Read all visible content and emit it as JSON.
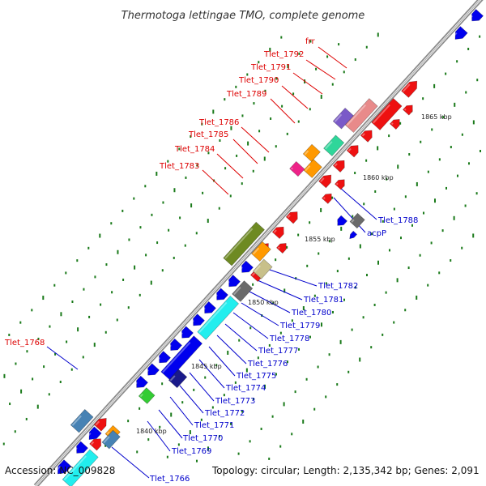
{
  "title": "Thermotoga lettingae TMO, complete genome",
  "footer": {
    "accession": "Accession: NC_009828",
    "summary": "Topology: circular; Length: 2,135,342 bp; Genes: 2,091"
  },
  "colors": {
    "backbone": "#9a9a9a",
    "tick": "#1a7a1a",
    "red_label": "#dd0000",
    "blue_label": "#0000cc",
    "leader": "#333333"
  },
  "scale_labels": [
    "1840 kbp",
    "1845 kbp",
    "1850 kbp",
    "1855 kbp",
    "1860 kbp",
    "1865 kbp"
  ],
  "gene_labels": {
    "red": [
      "Tlet_1768",
      "Tlet_1783",
      "Tlet_1784",
      "Tlet_1785",
      "Tlet_1786",
      "Tlet_1789",
      "Tlet_1790",
      "Tlet_1791",
      "Tlet_1792",
      "frr"
    ],
    "blue": [
      "Tlet_1766",
      "Tlet_1769",
      "Tlet_1770",
      "Tlet_1771",
      "Tlet_1772",
      "Tlet_1773",
      "Tlet_1774",
      "Tlet_1775",
      "Tlet_1776",
      "Tlet_1777",
      "Tlet_1778",
      "Tlet_1779",
      "Tlet_1780",
      "Tlet_1781",
      "Tlet_1782",
      "Tlet_1788",
      "acpP"
    ]
  }
}
